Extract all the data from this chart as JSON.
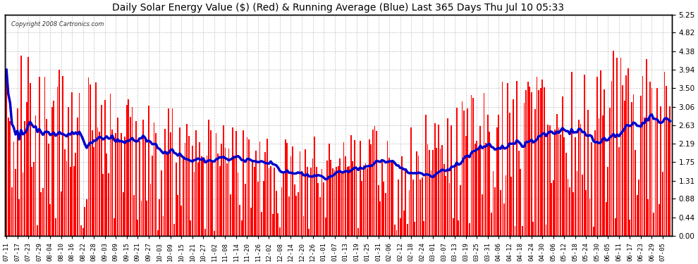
{
  "title": "Daily Solar Energy Value ($) (Red) & Running Average (Blue) Last 365 Days Thu Jul 10 05:33",
  "copyright": "Copyright 2008 Cartronics.com",
  "yticks": [
    0.0,
    0.44,
    0.88,
    1.31,
    1.75,
    2.19,
    2.63,
    3.06,
    3.5,
    3.94,
    4.38,
    4.82,
    5.25
  ],
  "ymax": 5.25,
  "ymin": 0.0,
  "bar_color": "#ff0000",
  "avg_color": "#0000cc",
  "bg_color": "#ffffff",
  "plot_bg_color": "#ffffff",
  "grid_color": "#aaaaaa",
  "title_color": "#000000",
  "avg_linewidth": 2.5,
  "bar_width": 0.7,
  "x_labels": [
    "07-11",
    "07-17",
    "07-23",
    "07-29",
    "08-04",
    "08-10",
    "08-16",
    "08-22",
    "08-28",
    "09-03",
    "09-09",
    "09-15",
    "09-21",
    "09-27",
    "10-03",
    "10-09",
    "10-15",
    "10-21",
    "10-27",
    "11-02",
    "11-08",
    "11-14",
    "11-20",
    "11-26",
    "12-02",
    "12-08",
    "12-14",
    "12-20",
    "12-26",
    "01-01",
    "01-07",
    "01-13",
    "01-19",
    "01-25",
    "01-31",
    "02-06",
    "02-12",
    "02-18",
    "02-24",
    "03-01",
    "03-07",
    "03-13",
    "03-19",
    "03-25",
    "03-31",
    "04-06",
    "04-12",
    "04-18",
    "04-24",
    "04-30",
    "05-06",
    "05-12",
    "05-18",
    "05-24",
    "05-30",
    "06-05",
    "06-11",
    "06-17",
    "06-23",
    "06-29",
    "07-05"
  ],
  "x_label_step": 6,
  "seed": 42,
  "n_days": 365
}
